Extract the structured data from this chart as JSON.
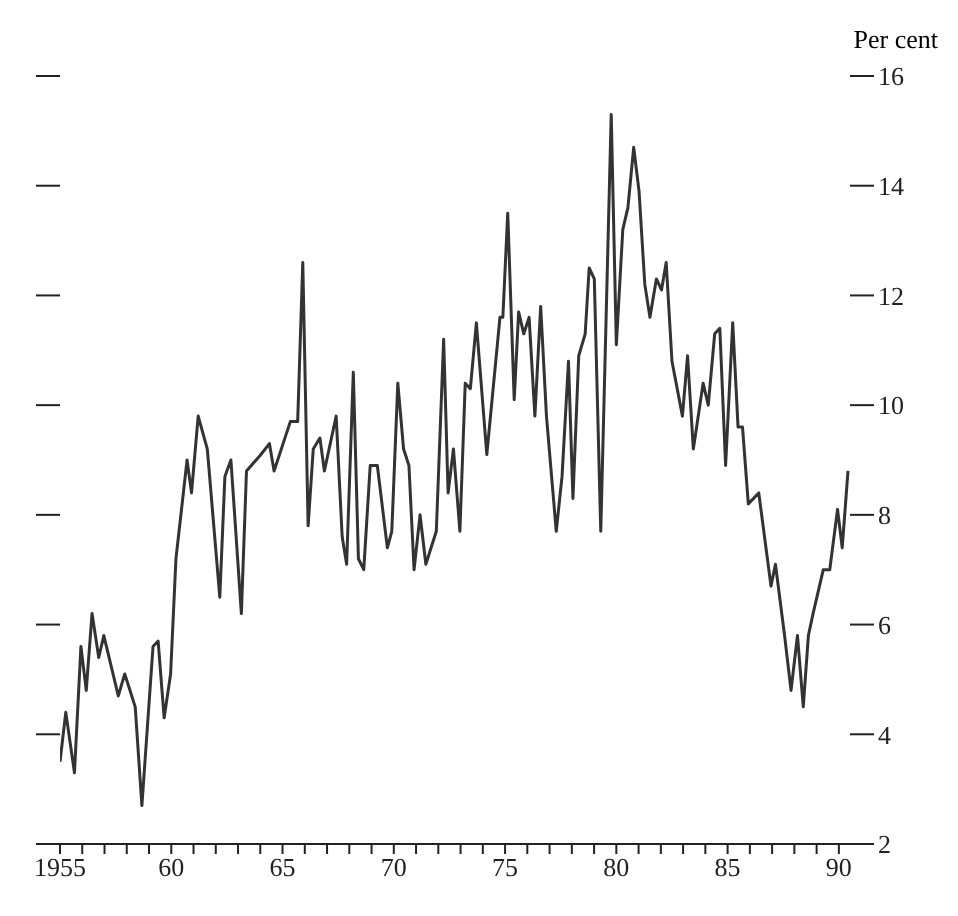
{
  "chart_data": {
    "type": "line",
    "ylabel": "Per cent",
    "marker": "none",
    "line_style": "solid",
    "xlim": [
      1955,
      1990.5
    ],
    "xticks": [
      {
        "value": 1955,
        "label": "1955"
      },
      {
        "value": 1956,
        "label": null
      },
      {
        "value": 1957,
        "label": null
      },
      {
        "value": 1958,
        "label": null
      },
      {
        "value": 1959,
        "label": null
      },
      {
        "value": 1960,
        "label": "60"
      },
      {
        "value": 1961,
        "label": null
      },
      {
        "value": 1962,
        "label": null
      },
      {
        "value": 1963,
        "label": null
      },
      {
        "value": 1964,
        "label": null
      },
      {
        "value": 1965,
        "label": "65"
      },
      {
        "value": 1966,
        "label": null
      },
      {
        "value": 1967,
        "label": null
      },
      {
        "value": 1968,
        "label": null
      },
      {
        "value": 1969,
        "label": null
      },
      {
        "value": 1970,
        "label": "70"
      },
      {
        "value": 1971,
        "label": null
      },
      {
        "value": 1972,
        "label": null
      },
      {
        "value": 1973,
        "label": null
      },
      {
        "value": 1974,
        "label": null
      },
      {
        "value": 1975,
        "label": "75"
      },
      {
        "value": 1976,
        "label": null
      },
      {
        "value": 1977,
        "label": null
      },
      {
        "value": 1978,
        "label": null
      },
      {
        "value": 1979,
        "label": null
      },
      {
        "value": 1980,
        "label": "80"
      },
      {
        "value": 1981,
        "label": null
      },
      {
        "value": 1982,
        "label": null
      },
      {
        "value": 1983,
        "label": null
      },
      {
        "value": 1984,
        "label": null
      },
      {
        "value": 1985,
        "label": "85"
      },
      {
        "value": 1986,
        "label": null
      },
      {
        "value": 1987,
        "label": null
      },
      {
        "value": 1988,
        "label": null
      },
      {
        "value": 1989,
        "label": null
      },
      {
        "value": 1990,
        "label": "90"
      }
    ],
    "ylim": [
      2,
      16
    ],
    "yticks": [
      2,
      4,
      6,
      8,
      10,
      12,
      14,
      16
    ],
    "series": [
      {
        "color": "#333333",
        "x": [
          1955.0,
          1955.26,
          1955.65,
          1955.94,
          1956.18,
          1956.44,
          1956.74,
          1956.97,
          1957.62,
          1957.91,
          1958.38,
          1958.68,
          1959.18,
          1959.41,
          1959.68,
          1959.97,
          1960.21,
          1960.71,
          1960.91,
          1961.21,
          1961.62,
          1962.18,
          1962.41,
          1962.68,
          1963.15,
          1963.38,
          1964.03,
          1964.41,
          1964.62,
          1965.35,
          1965.68,
          1965.91,
          1966.15,
          1966.38,
          1966.68,
          1966.88,
          1967.41,
          1967.68,
          1967.88,
          1968.18,
          1968.41,
          1968.65,
          1968.94,
          1969.26,
          1969.71,
          1969.91,
          1970.18,
          1970.44,
          1970.68,
          1970.91,
          1971.18,
          1971.44,
          1971.91,
          1972.24,
          1972.44,
          1972.68,
          1972.97,
          1973.21,
          1973.44,
          1973.71,
          1974.18,
          1974.77,
          1974.9,
          1975.12,
          1975.41,
          1975.61,
          1975.84,
          1976.08,
          1976.34,
          1976.6,
          1976.86,
          1977.3,
          1977.56,
          1977.85,
          1978.05,
          1978.31,
          1978.6,
          1978.78,
          1979.01,
          1979.3,
          1979.77,
          1980.0,
          1980.29,
          1980.52,
          1980.78,
          1981.02,
          1981.28,
          1981.51,
          1981.8,
          1982.03,
          1982.24,
          1982.5,
          1982.97,
          1983.2,
          1983.46,
          1983.9,
          1984.13,
          1984.42,
          1984.65,
          1984.91,
          1985.23,
          1985.47,
          1985.67,
          1985.93,
          1986.4,
          1986.95,
          1987.15,
          1987.56,
          1987.85,
          1988.14,
          1988.4,
          1988.63,
          1988.84,
          1989.3,
          1989.59,
          1989.94,
          1990.15,
          1990.41
        ],
        "values": [
          3.5,
          4.4,
          3.3,
          5.6,
          4.8,
          6.2,
          5.4,
          5.8,
          4.7,
          5.1,
          4.5,
          2.7,
          5.6,
          5.7,
          4.3,
          5.1,
          7.2,
          9.0,
          8.4,
          9.8,
          9.2,
          6.5,
          8.7,
          9.0,
          6.2,
          8.8,
          9.1,
          9.3,
          8.8,
          9.7,
          9.7,
          12.6,
          7.8,
          9.2,
          9.4,
          8.8,
          9.8,
          7.6,
          7.1,
          10.6,
          7.2,
          7.0,
          8.9,
          8.9,
          7.4,
          7.7,
          10.4,
          9.2,
          8.9,
          7.0,
          8.0,
          7.1,
          7.7,
          11.2,
          8.4,
          9.2,
          7.7,
          10.4,
          10.3,
          11.5,
          9.1,
          11.6,
          11.6,
          13.5,
          10.1,
          11.7,
          11.3,
          11.6,
          9.8,
          11.8,
          9.8,
          7.7,
          8.7,
          10.8,
          8.3,
          10.9,
          11.3,
          12.5,
          12.3,
          7.7,
          15.3,
          11.1,
          13.2,
          13.6,
          14.7,
          13.9,
          12.2,
          11.6,
          12.3,
          12.1,
          12.6,
          10.8,
          9.8,
          10.9,
          9.2,
          10.4,
          10.0,
          11.3,
          11.4,
          8.9,
          11.5,
          9.6,
          9.6,
          8.2,
          8.4,
          6.7,
          7.1,
          5.8,
          4.8,
          5.8,
          4.5,
          5.8,
          6.2,
          7.0,
          7.0,
          8.1,
          7.4,
          8.8
        ]
      }
    ]
  }
}
